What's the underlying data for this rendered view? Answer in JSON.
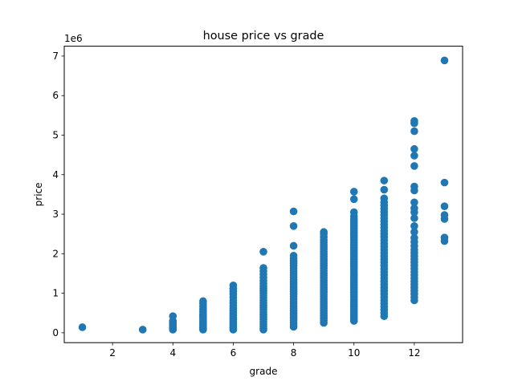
{
  "chart_data": {
    "type": "scatter",
    "title": "house price vs grade",
    "xlabel": "grade",
    "ylabel": "price",
    "y_offset_label": "1e6",
    "xlim": [
      0.4,
      13.6
    ],
    "ylim": [
      -0.25,
      7.25
    ],
    "y_unit_multiplier": 1000000,
    "x_ticks": [
      2,
      4,
      6,
      8,
      10,
      12
    ],
    "x_tick_labels": [
      "2",
      "4",
      "6",
      "8",
      "10",
      "12"
    ],
    "y_ticks": [
      0,
      1,
      2,
      3,
      4,
      5,
      6,
      7
    ],
    "y_tick_labels": [
      "0",
      "1",
      "2",
      "3",
      "4",
      "5",
      "6",
      "7"
    ],
    "grid": false,
    "marker_color": "#1f77b4",
    "series": [
      {
        "groups": [
          {
            "x": 1,
            "y": [
              0.14
            ]
          },
          {
            "x": 3,
            "y": [
              0.08
            ]
          },
          {
            "x": 4,
            "y": [
              0.08,
              0.1,
              0.12,
              0.15,
              0.18,
              0.22,
              0.26,
              0.3,
              0.42
            ]
          },
          {
            "x": 5,
            "y": [
              0.08,
              0.1,
              0.13,
              0.16,
              0.2,
              0.24,
              0.28,
              0.33,
              0.38,
              0.43,
              0.48,
              0.54,
              0.6,
              0.67,
              0.74,
              0.8
            ]
          },
          {
            "x": 6,
            "y": [
              0.08,
              0.1,
              0.13,
              0.16,
              0.2,
              0.24,
              0.28,
              0.33,
              0.38,
              0.44,
              0.5,
              0.56,
              0.62,
              0.68,
              0.75,
              0.82,
              0.9,
              0.98,
              1.05,
              1.12,
              1.2
            ]
          },
          {
            "x": 7,
            "y": [
              0.08,
              0.12,
              0.17,
              0.22,
              0.28,
              0.34,
              0.4,
              0.46,
              0.52,
              0.58,
              0.64,
              0.7,
              0.76,
              0.82,
              0.88,
              0.94,
              1.0,
              1.06,
              1.12,
              1.18,
              1.25,
              1.32,
              1.4,
              1.48,
              1.56,
              1.64,
              2.05
            ]
          },
          {
            "x": 8,
            "y": [
              0.15,
              0.2,
              0.26,
              0.32,
              0.38,
              0.44,
              0.5,
              0.56,
              0.62,
              0.68,
              0.74,
              0.8,
              0.86,
              0.92,
              0.98,
              1.04,
              1.1,
              1.16,
              1.22,
              1.28,
              1.34,
              1.4,
              1.46,
              1.52,
              1.58,
              1.64,
              1.7,
              1.76,
              1.82,
              1.88,
              1.95,
              2.2,
              2.7,
              3.07
            ]
          },
          {
            "x": 9,
            "y": [
              0.25,
              0.31,
              0.37,
              0.43,
              0.49,
              0.55,
              0.61,
              0.67,
              0.73,
              0.79,
              0.85,
              0.91,
              0.97,
              1.03,
              1.09,
              1.15,
              1.21,
              1.27,
              1.33,
              1.39,
              1.45,
              1.51,
              1.57,
              1.63,
              1.69,
              1.75,
              1.81,
              1.87,
              1.93,
              1.99,
              2.05,
              2.11,
              2.17,
              2.23,
              2.29,
              2.35,
              2.42,
              2.5,
              2.55
            ]
          },
          {
            "x": 10,
            "y": [
              0.3,
              0.36,
              0.42,
              0.48,
              0.54,
              0.6,
              0.66,
              0.72,
              0.78,
              0.84,
              0.9,
              0.96,
              1.02,
              1.08,
              1.14,
              1.2,
              1.26,
              1.32,
              1.38,
              1.44,
              1.5,
              1.56,
              1.62,
              1.68,
              1.74,
              1.8,
              1.86,
              1.92,
              1.98,
              2.04,
              2.1,
              2.16,
              2.22,
              2.28,
              2.34,
              2.4,
              2.46,
              2.52,
              2.58,
              2.64,
              2.7,
              2.76,
              2.82,
              2.88,
              2.95,
              3.05,
              3.38,
              3.57
            ]
          },
          {
            "x": 11,
            "y": [
              0.42,
              0.5,
              0.58,
              0.66,
              0.74,
              0.82,
              0.9,
              0.98,
              1.06,
              1.14,
              1.22,
              1.3,
              1.38,
              1.46,
              1.54,
              1.62,
              1.7,
              1.78,
              1.86,
              1.94,
              2.02,
              2.1,
              2.18,
              2.26,
              2.34,
              2.42,
              2.5,
              2.58,
              2.66,
              2.74,
              2.82,
              2.9,
              2.98,
              3.06,
              3.14,
              3.22,
              3.3,
              3.4,
              3.62,
              3.85
            ]
          },
          {
            "x": 12,
            "y": [
              0.82,
              0.9,
              0.98,
              1.06,
              1.14,
              1.22,
              1.3,
              1.38,
              1.46,
              1.54,
              1.62,
              1.7,
              1.78,
              1.86,
              1.94,
              2.02,
              2.1,
              2.2,
              2.3,
              2.4,
              2.55,
              2.7,
              2.9,
              3.05,
              3.15,
              3.3,
              3.6,
              3.7,
              4.22,
              4.48,
              4.65,
              5.1,
              5.3,
              5.36
            ]
          },
          {
            "x": 13,
            "y": [
              2.32,
              2.41,
              2.88,
              2.98,
              3.2,
              3.8,
              6.89
            ]
          }
        ]
      }
    ]
  }
}
